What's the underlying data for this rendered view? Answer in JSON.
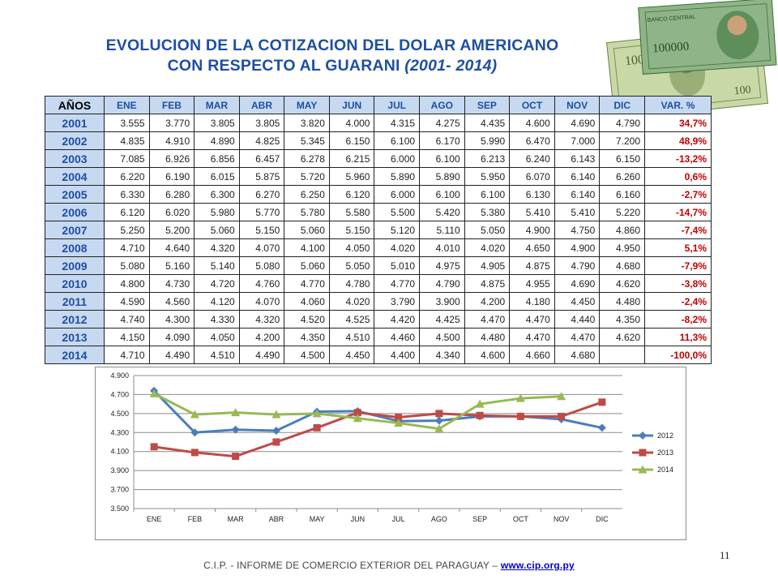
{
  "title": {
    "line1": "EVOLUCION DE LA COTIZACION DEL DOLAR  AMERICANO",
    "line2": "CON RESPECTO AL GUARANI",
    "years": "(2001- 2014)"
  },
  "table": {
    "header": [
      "AÑOS",
      "ENE",
      "FEB",
      "MAR",
      "ABR",
      "MAY",
      "JUN",
      "JUL",
      "AGO",
      "SEP",
      "OCT",
      "NOV",
      "DIC",
      "VAR. %"
    ],
    "rows": [
      {
        "year": "2001",
        "values": [
          "3.555",
          "3.770",
          "3.805",
          "3.805",
          "3.820",
          "4.000",
          "4.315",
          "4.275",
          "4.435",
          "4.600",
          "4.690",
          "4.790"
        ],
        "var": "34,7%"
      },
      {
        "year": "2002",
        "values": [
          "4.835",
          "4.910",
          "4.890",
          "4.825",
          "5.345",
          "6.150",
          "6.100",
          "6.170",
          "5.990",
          "6.470",
          "7.000",
          "7.200"
        ],
        "var": "48,9%"
      },
      {
        "year": "2003",
        "values": [
          "7.085",
          "6.926",
          "6.856",
          "6.457",
          "6.278",
          "6.215",
          "6.000",
          "6.100",
          "6.213",
          "6.240",
          "6.143",
          "6.150"
        ],
        "var": "-13,2%"
      },
      {
        "year": "2004",
        "values": [
          "6.220",
          "6.190",
          "6.015",
          "5.875",
          "5.720",
          "5.960",
          "5.890",
          "5.890",
          "5.950",
          "6.070",
          "6.140",
          "6.260"
        ],
        "var": "0,6%"
      },
      {
        "year": "2005",
        "values": [
          "6.330",
          "6.280",
          "6.300",
          "6.270",
          "6.250",
          "6.120",
          "6.000",
          "6.100",
          "6.100",
          "6.130",
          "6.140",
          "6.160"
        ],
        "var": "-2,7%"
      },
      {
        "year": "2006",
        "values": [
          "6.120",
          "6.020",
          "5.980",
          "5.770",
          "5.780",
          "5.580",
          "5.500",
          "5.420",
          "5.380",
          "5.410",
          "5.410",
          "5.220"
        ],
        "var": "-14,7%"
      },
      {
        "year": "2007",
        "values": [
          "5.250",
          "5.200",
          "5.060",
          "5.150",
          "5.060",
          "5.150",
          "5.120",
          "5.110",
          "5.050",
          "4.900",
          "4.750",
          "4.860"
        ],
        "var": "-7,4%"
      },
      {
        "year": "2008",
        "values": [
          "4.710",
          "4.640",
          "4.320",
          "4.070",
          "4.100",
          "4.050",
          "4.020",
          "4.010",
          "4.020",
          "4.650",
          "4.900",
          "4.950"
        ],
        "var": "5,1%"
      },
      {
        "year": "2009",
        "values": [
          "5.080",
          "5.160",
          "5.140",
          "5.080",
          "5.060",
          "5.050",
          "5.010",
          "4.975",
          "4.905",
          "4.875",
          "4.790",
          "4.680"
        ],
        "var": "-7,9%"
      },
      {
        "year": "2010",
        "values": [
          "4.800",
          "4.730",
          "4.720",
          "4.760",
          "4.770",
          "4.780",
          "4.770",
          "4.790",
          "4.875",
          "4.955",
          "4.690",
          "4.620"
        ],
        "var": "-3,8%"
      },
      {
        "year": "2011",
        "values": [
          "4.590",
          "4.560",
          "4.120",
          "4.070",
          "4.060",
          "4.020",
          "3.790",
          "3.900",
          "4.200",
          "4.180",
          "4.450",
          "4.480"
        ],
        "var": "-2,4%"
      },
      {
        "year": "2012",
        "values": [
          "4.740",
          "4.300",
          "4.330",
          "4.320",
          "4.520",
          "4.525",
          "4.420",
          "4.425",
          "4.470",
          "4.470",
          "4.440",
          "4.350"
        ],
        "var": "-8,2%"
      },
      {
        "year": "2013",
        "values": [
          "4.150",
          "4.090",
          "4.050",
          "4.200",
          "4.350",
          "4.510",
          "4.460",
          "4.500",
          "4.480",
          "4.470",
          "4.470",
          "4.620"
        ],
        "var": "11,3%"
      },
      {
        "year": "2014",
        "values": [
          "4.710",
          "4.490",
          "4.510",
          "4.490",
          "4.500",
          "4.450",
          "4.400",
          "4.340",
          "4.600",
          "4.660",
          "4.680",
          ""
        ],
        "var": "-100,0%"
      }
    ]
  },
  "chart_data": {
    "type": "line",
    "categories": [
      "ENE",
      "FEB",
      "MAR",
      "ABR",
      "MAY",
      "JUN",
      "JUL",
      "AGO",
      "SEP",
      "OCT",
      "NOV",
      "DIC"
    ],
    "ylim": [
      3500,
      4900
    ],
    "yticks": [
      "3.500",
      "3.700",
      "3.900",
      "4.100",
      "4.300",
      "4.500",
      "4.700",
      "4.900"
    ],
    "ytick_values": [
      3500,
      3700,
      3900,
      4100,
      4300,
      4500,
      4700,
      4900
    ],
    "grid": "horizontal",
    "legend": "right",
    "series": [
      {
        "name": "2012",
        "color": "#4a7ebb",
        "marker": "diamond",
        "values": [
          4740,
          4300,
          4330,
          4320,
          4520,
          4525,
          4420,
          4425,
          4470,
          4470,
          4440,
          4350
        ]
      },
      {
        "name": "2013",
        "color": "#be4b48",
        "marker": "square",
        "values": [
          4150,
          4090,
          4050,
          4200,
          4350,
          4510,
          4460,
          4500,
          4480,
          4470,
          4470,
          4620
        ]
      },
      {
        "name": "2014",
        "color": "#98b954",
        "marker": "triangle",
        "values": [
          4710,
          4490,
          4510,
          4490,
          4500,
          4450,
          4400,
          4340,
          4600,
          4660,
          4680,
          null
        ]
      }
    ]
  },
  "footer": {
    "text": "C.I.P. - INFORME DE COMERCIO EXTERIOR DEL PARAGUAY – ",
    "link": "www.cip.org.py"
  },
  "page_number": "11"
}
